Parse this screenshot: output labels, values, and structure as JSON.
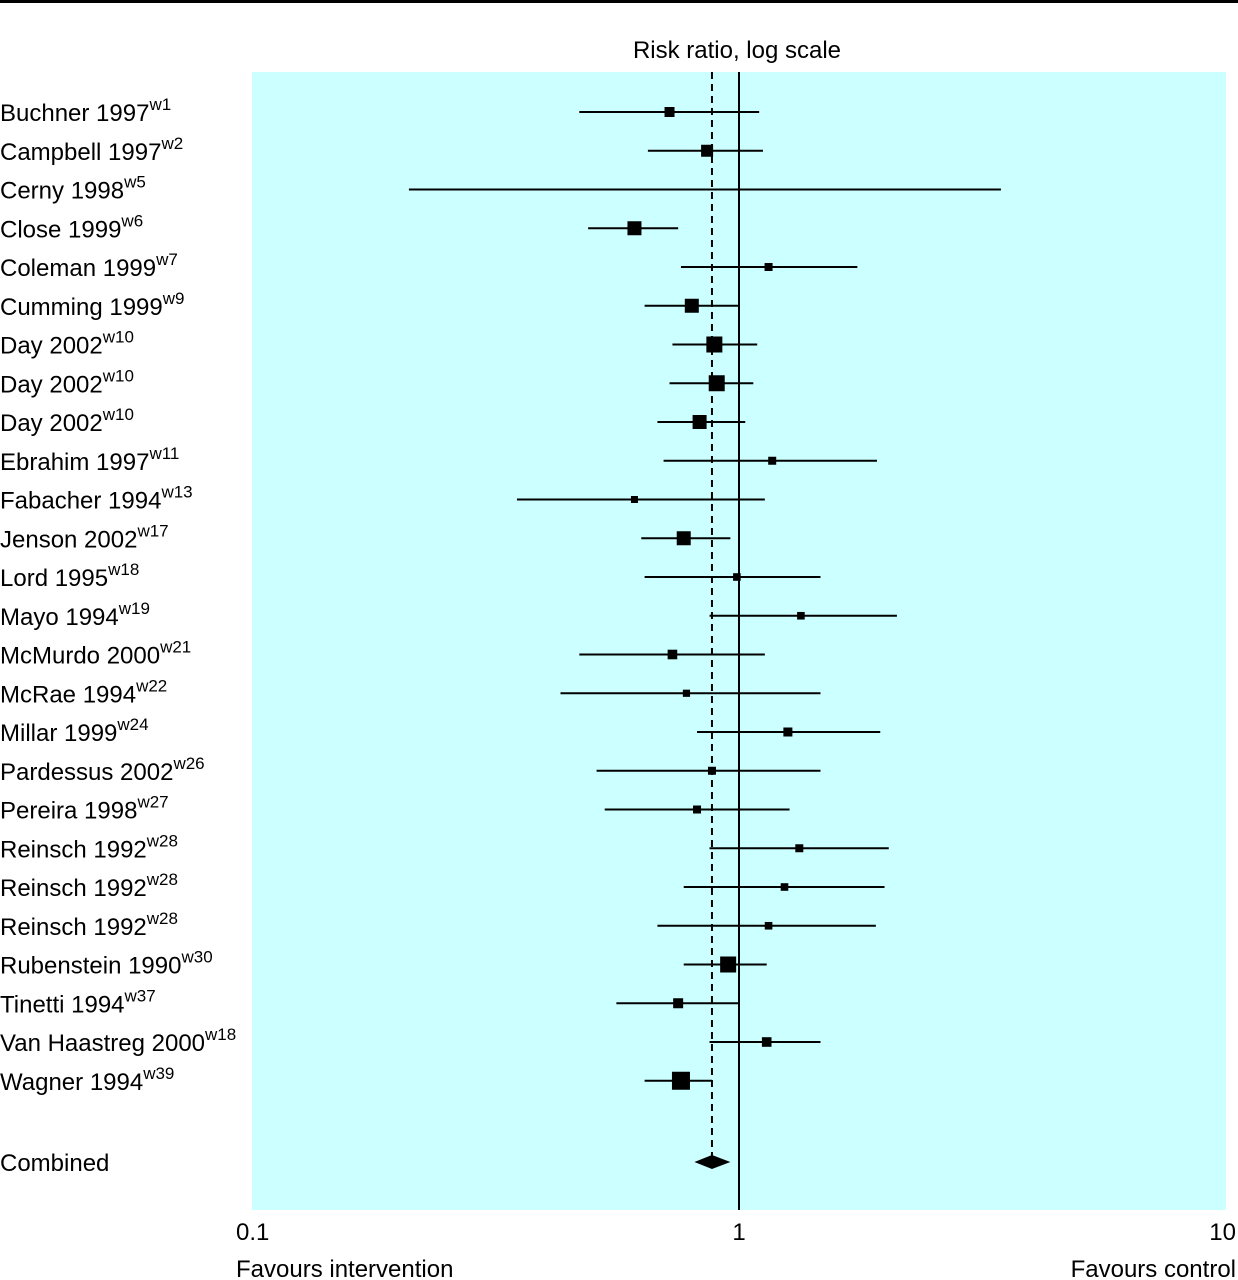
{
  "chart_data": {
    "type": "forest",
    "title": "Risk ratio, log scale",
    "xscale": "log",
    "xlim": [
      0.1,
      10
    ],
    "ticks": [
      {
        "value": 0.1,
        "label": "0.1"
      },
      {
        "value": 1,
        "label": "1"
      },
      {
        "value": 10,
        "label": "10"
      }
    ],
    "xlabel_left": "Favours intervention",
    "xlabel_right": "Favours control",
    "reference_line": 1,
    "pooled_line": 0.88,
    "background_color": "#ccffff",
    "studies": [
      {
        "name": "Buchner 1997",
        "ref": "w1",
        "rr": 0.72,
        "lo": 0.47,
        "hi": 1.1,
        "weight": 2
      },
      {
        "name": "Campbell 1997",
        "ref": "w2",
        "rr": 0.86,
        "lo": 0.65,
        "hi": 1.12,
        "weight": 3
      },
      {
        "name": "Cerny 1998",
        "ref": "w5",
        "rr": null,
        "lo": 0.21,
        "hi": 3.45,
        "weight": 0
      },
      {
        "name": "Close 1999",
        "ref": "w6",
        "rr": 0.61,
        "lo": 0.49,
        "hi": 0.75,
        "weight": 4
      },
      {
        "name": "Coleman 1999",
        "ref": "w7",
        "rr": 1.15,
        "lo": 0.76,
        "hi": 1.75,
        "weight": 1
      },
      {
        "name": "Cumming 1999",
        "ref": "w9",
        "rr": 0.8,
        "lo": 0.64,
        "hi": 1.0,
        "weight": 4
      },
      {
        "name": "Day 2002",
        "ref": "w10",
        "rr": 0.89,
        "lo": 0.73,
        "hi": 1.09,
        "weight": 5
      },
      {
        "name": "Day 2002",
        "ref": "w10",
        "rr": 0.9,
        "lo": 0.72,
        "hi": 1.07,
        "weight": 5
      },
      {
        "name": "Day 2002",
        "ref": "w10",
        "rr": 0.83,
        "lo": 0.68,
        "hi": 1.03,
        "weight": 4
      },
      {
        "name": "Ebrahim 1997",
        "ref": "w11",
        "rr": 1.17,
        "lo": 0.7,
        "hi": 1.92,
        "weight": 1
      },
      {
        "name": "Fabacher 1994",
        "ref": "w13",
        "rr": 0.61,
        "lo": 0.35,
        "hi": 1.13,
        "weight": 0.5
      },
      {
        "name": "Jenson 2002",
        "ref": "w17",
        "rr": 0.77,
        "lo": 0.63,
        "hi": 0.96,
        "weight": 4
      },
      {
        "name": "Lord 1995",
        "ref": "w18",
        "rr": 0.99,
        "lo": 0.64,
        "hi": 1.47,
        "weight": 0.8
      },
      {
        "name": "Mayo 1994",
        "ref": "w19",
        "rr": 1.34,
        "lo": 0.87,
        "hi": 2.11,
        "weight": 0.8
      },
      {
        "name": "McMurdo 2000",
        "ref": "w21",
        "rr": 0.73,
        "lo": 0.47,
        "hi": 1.13,
        "weight": 1.8
      },
      {
        "name": "McRae 1994",
        "ref": "w22",
        "rr": 0.78,
        "lo": 0.43,
        "hi": 1.47,
        "weight": 0.6
      },
      {
        "name": "Millar 1999",
        "ref": "w24",
        "rr": 1.26,
        "lo": 0.82,
        "hi": 1.95,
        "weight": 1.5
      },
      {
        "name": "Pardessus 2002",
        "ref": "w26",
        "rr": 0.88,
        "lo": 0.51,
        "hi": 1.47,
        "weight": 1
      },
      {
        "name": "Pereira 1998",
        "ref": "w27",
        "rr": 0.82,
        "lo": 0.53,
        "hi": 1.27,
        "weight": 1
      },
      {
        "name": "Reinsch 1992",
        "ref": "w28",
        "rr": 1.33,
        "lo": 0.87,
        "hi": 2.03,
        "weight": 1
      },
      {
        "name": "Reinsch 1992",
        "ref": "w28",
        "rr": 1.24,
        "lo": 0.77,
        "hi": 1.99,
        "weight": 0.8
      },
      {
        "name": "Reinsch 1992",
        "ref": "w28",
        "rr": 1.15,
        "lo": 0.68,
        "hi": 1.91,
        "weight": 0.8
      },
      {
        "name": "Rubenstein 1990",
        "ref": "w30",
        "rr": 0.95,
        "lo": 0.77,
        "hi": 1.14,
        "weight": 5
      },
      {
        "name": "Tinetti 1994",
        "ref": "w37",
        "rr": 0.75,
        "lo": 0.56,
        "hi": 1.0,
        "weight": 2
      },
      {
        "name": "Van Haastreg 2000",
        "ref": "w18",
        "rr": 1.14,
        "lo": 0.87,
        "hi": 1.47,
        "weight": 1.8
      },
      {
        "name": "Wagner 1994",
        "ref": "w39",
        "rr": 0.76,
        "lo": 0.64,
        "hi": 0.88,
        "weight": 6
      }
    ],
    "combined": {
      "label": "Combined",
      "rr": 0.88,
      "lo": 0.81,
      "hi": 0.96
    }
  }
}
